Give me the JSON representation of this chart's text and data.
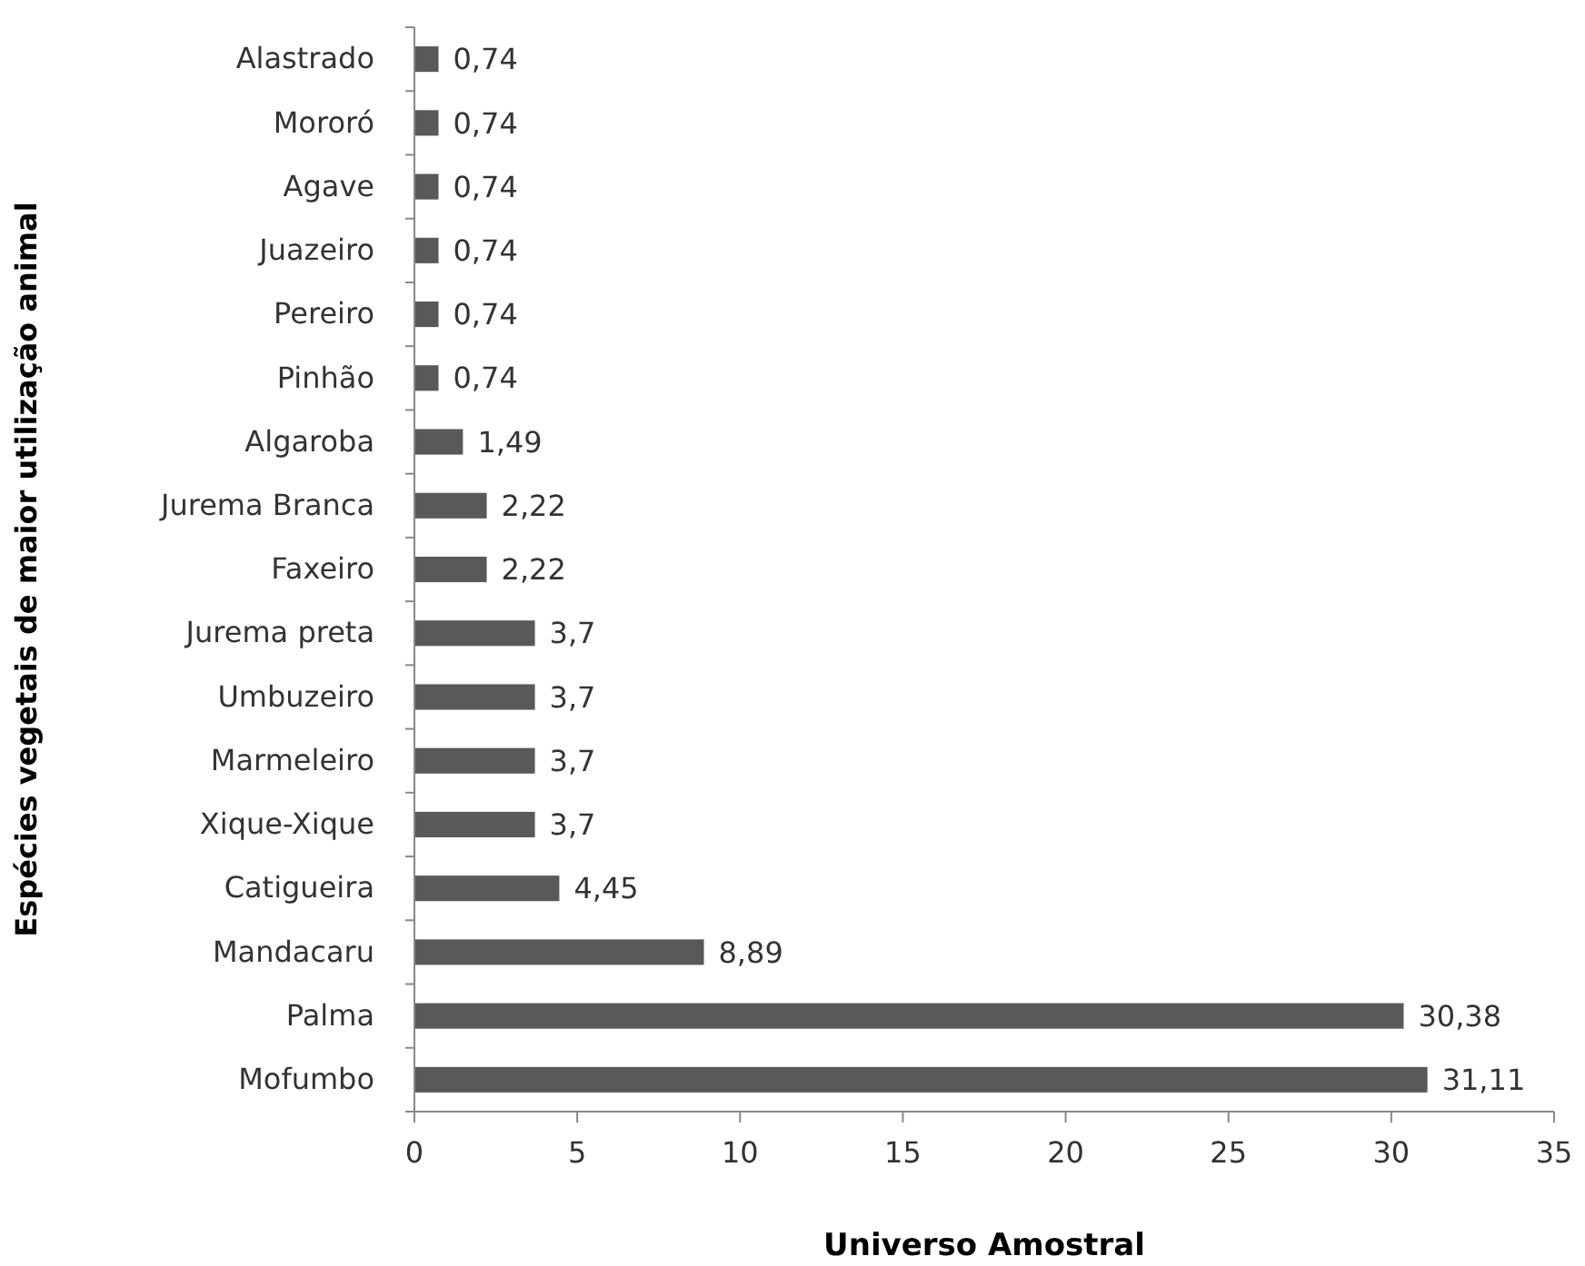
{
  "chart_data": {
    "type": "bar",
    "orientation": "horizontal",
    "xlabel": "Universo Amostral",
    "ylabel": "Espécies vegetais de maior utilização animal",
    "categories": [
      "Alastrado",
      "Mororó",
      "Agave",
      "Juazeiro",
      "Pereiro",
      "Pinhão",
      "Algaroba",
      "Jurema Branca",
      "Faxeiro",
      "Jurema preta",
      "Umbuzeiro",
      "Marmeleiro",
      "Xique-Xique",
      "Catigueira",
      "Mandacaru",
      "Palma",
      "Mofumbo"
    ],
    "values": [
      0.74,
      0.74,
      0.74,
      0.74,
      0.74,
      0.74,
      1.49,
      2.22,
      2.22,
      3.7,
      3.7,
      3.7,
      3.7,
      4.45,
      8.89,
      30.38,
      31.11
    ],
    "value_labels": [
      "0,74",
      "0,74",
      "0,74",
      "0,74",
      "0,74",
      "0,74",
      "1,49",
      "2,22",
      "2,22",
      "3,7",
      "3,7",
      "3,7",
      "3,7",
      "4,45",
      "8,89",
      "30,38",
      "31,11"
    ],
    "color": "#595959",
    "xlim": [
      0,
      35
    ],
    "xticks": [
      0,
      5,
      10,
      15,
      20,
      25,
      30,
      35
    ],
    "grid": false
  }
}
